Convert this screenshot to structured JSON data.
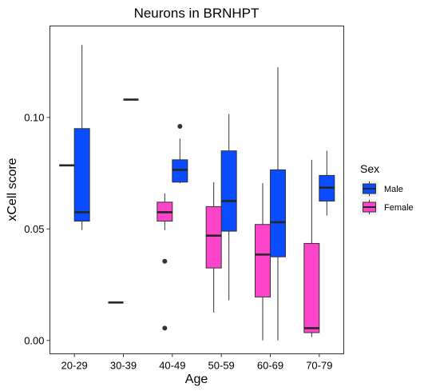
{
  "chart_data": {
    "type": "boxplot",
    "title": "Neurons in BRNHPT",
    "xlabel": "Age",
    "ylabel": "xCell score",
    "categories": [
      "20-29",
      "30-39",
      "40-49",
      "50-59",
      "60-69",
      "70-79"
    ],
    "ylim": [
      -0.006,
      0.141
    ],
    "yticks": [
      0.0,
      0.05,
      0.1
    ],
    "ytick_labels": [
      "0.00",
      "0.05",
      "0.10"
    ],
    "grid": false,
    "legend": {
      "title": "Sex",
      "position": "right",
      "entries": [
        {
          "name": "Male",
          "color": "#0a4cff"
        },
        {
          "name": "Female",
          "color": "#ff44cc"
        }
      ]
    },
    "series": [
      {
        "name": "Male",
        "color": "#0a4cff",
        "boxes": [
          {
            "category": "20-29",
            "whisker_low": 0.0495,
            "q1": 0.0535,
            "median": 0.0575,
            "q3": 0.095,
            "whisker_high": 0.1325,
            "outliers": []
          },
          {
            "category": "30-39",
            "whisker_low": 0.108,
            "q1": 0.108,
            "median": 0.108,
            "q3": 0.108,
            "whisker_high": 0.108,
            "outliers": []
          },
          {
            "category": "40-49",
            "whisker_low": 0.0705,
            "q1": 0.071,
            "median": 0.0765,
            "q3": 0.081,
            "whisker_high": 0.0905,
            "outliers": [
              0.096
            ]
          },
          {
            "category": "50-59",
            "whisker_low": 0.018,
            "q1": 0.049,
            "median": 0.0625,
            "q3": 0.085,
            "whisker_high": 0.1015,
            "outliers": []
          },
          {
            "category": "60-69",
            "whisker_low": 0.0,
            "q1": 0.0375,
            "median": 0.053,
            "q3": 0.0765,
            "whisker_high": 0.1225,
            "outliers": []
          },
          {
            "category": "70-79",
            "whisker_low": 0.056,
            "q1": 0.0625,
            "median": 0.0685,
            "q3": 0.074,
            "whisker_high": 0.085,
            "outliers": []
          }
        ]
      },
      {
        "name": "Female",
        "color": "#ff44cc",
        "boxes": [
          {
            "category": "20-29",
            "whisker_low": 0.0785,
            "q1": 0.0785,
            "median": 0.0785,
            "q3": 0.0785,
            "whisker_high": 0.0785,
            "outliers": []
          },
          {
            "category": "30-39",
            "whisker_low": 0.017,
            "q1": 0.017,
            "median": 0.017,
            "q3": 0.017,
            "whisker_high": 0.017,
            "outliers": []
          },
          {
            "category": "40-49",
            "whisker_low": 0.0495,
            "q1": 0.0535,
            "median": 0.0575,
            "q3": 0.062,
            "whisker_high": 0.066,
            "outliers": [
              0.0355,
              0.0055
            ]
          },
          {
            "category": "50-59",
            "whisker_low": 0.0125,
            "q1": 0.0325,
            "median": 0.047,
            "q3": 0.06,
            "whisker_high": 0.071,
            "outliers": []
          },
          {
            "category": "60-69",
            "whisker_low": 0.0,
            "q1": 0.0195,
            "median": 0.0385,
            "q3": 0.052,
            "whisker_high": 0.0705,
            "outliers": []
          },
          {
            "category": "70-79",
            "whisker_low": 0.0015,
            "q1": 0.0035,
            "median": 0.0055,
            "q3": 0.0435,
            "whisker_high": 0.081,
            "outliers": []
          }
        ]
      }
    ]
  }
}
